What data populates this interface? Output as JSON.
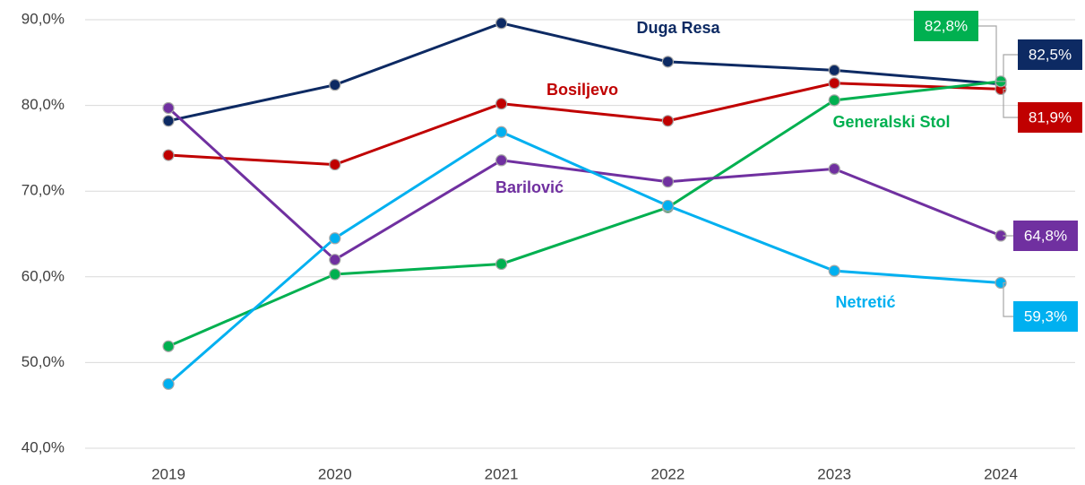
{
  "chart_data": {
    "type": "line",
    "categories": [
      "2019",
      "2020",
      "2021",
      "2022",
      "2023",
      "2024"
    ],
    "ylim": [
      40,
      90
    ],
    "yticks": [
      {
        "value": 40,
        "label": "40,0%"
      },
      {
        "value": 50,
        "label": "50,0%"
      },
      {
        "value": 60,
        "label": "60,0%"
      },
      {
        "value": 70,
        "label": "70,0%"
      },
      {
        "value": 80,
        "label": "80,0%"
      },
      {
        "value": 90,
        "label": "90,0%"
      }
    ],
    "grid": true,
    "series": [
      {
        "name": "Duga Resa",
        "color": "#0d2a63",
        "values": [
          78.2,
          82.4,
          89.6,
          85.1,
          84.1,
          82.5
        ],
        "value_labels": [
          null,
          null,
          null,
          null,
          null,
          "82,5%"
        ]
      },
      {
        "name": "Bosiljevo",
        "color": "#c00000",
        "values": [
          74.2,
          73.1,
          80.2,
          78.2,
          82.6,
          81.9
        ],
        "value_labels": [
          null,
          null,
          null,
          null,
          null,
          "81,9%"
        ]
      },
      {
        "name": "Generalski Stol",
        "color": "#00b050",
        "values": [
          51.9,
          60.3,
          61.5,
          68.1,
          80.6,
          82.8
        ],
        "value_labels": [
          null,
          null,
          null,
          null,
          null,
          "82,8%"
        ]
      },
      {
        "name": "Barilović",
        "color": "#7030a0",
        "values": [
          79.7,
          62.0,
          73.6,
          71.1,
          72.6,
          64.8
        ],
        "value_labels": [
          null,
          null,
          null,
          null,
          null,
          "64,8%"
        ]
      },
      {
        "name": "Netretić",
        "color": "#00b0f0",
        "values": [
          47.5,
          64.5,
          76.9,
          68.3,
          60.7,
          59.3
        ],
        "value_labels": [
          null,
          null,
          null,
          null,
          null,
          "59,3%"
        ]
      }
    ]
  }
}
